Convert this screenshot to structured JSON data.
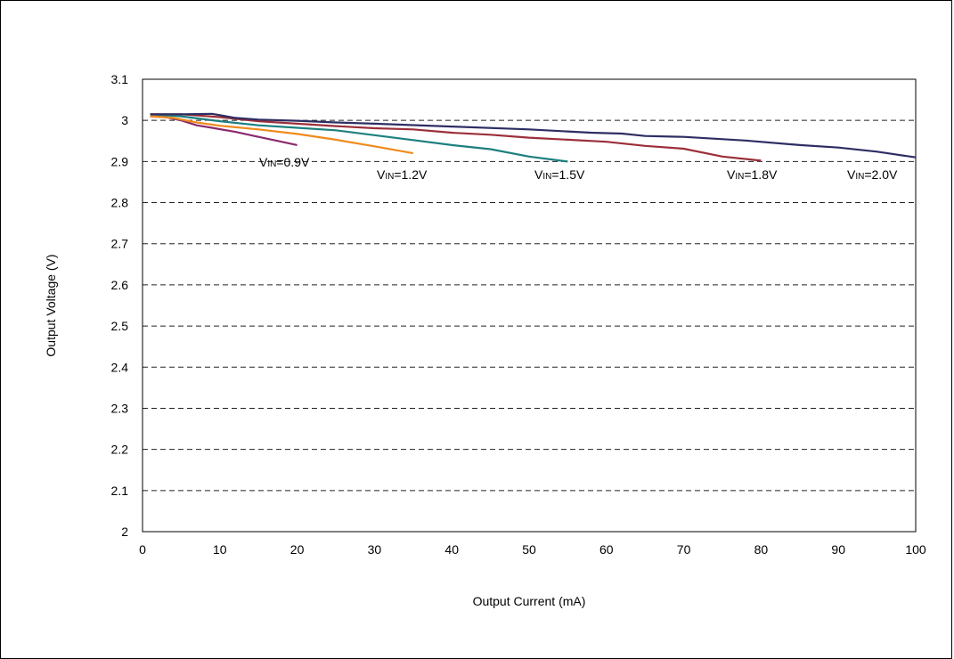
{
  "chart_data": {
    "type": "line",
    "title": "",
    "xlabel": "Output Current (mA)",
    "ylabel": "Output Voltage (V)",
    "xlim": [
      0,
      100
    ],
    "ylim": [
      2,
      3.1
    ],
    "x_ticks": [
      "0",
      "10",
      "20",
      "30",
      "40",
      "50",
      "60",
      "70",
      "80",
      "90",
      "100"
    ],
    "y_ticks": [
      "2",
      "2.1",
      "2.2",
      "2.3",
      "2.4",
      "2.5",
      "2.6",
      "2.7",
      "2.8",
      "2.9",
      "3",
      "3.1"
    ],
    "grid": "horizontal dashed",
    "series": [
      {
        "name_parts": [
          "V",
          "IN",
          "=0.9V"
        ],
        "color": "#8b2a6e",
        "x": [
          1,
          3,
          5,
          7,
          9,
          12,
          15,
          18,
          20
        ],
        "y": [
          3.01,
          3.008,
          3.0,
          2.988,
          2.982,
          2.972,
          2.96,
          2.948,
          2.94
        ]
      },
      {
        "name_parts": [
          "V",
          "IN",
          "=1.2V"
        ],
        "color": "#f08a1c",
        "x": [
          1,
          4,
          7,
          10,
          15,
          20,
          25,
          30,
          35
        ],
        "y": [
          3.01,
          3.006,
          2.995,
          2.987,
          2.978,
          2.967,
          2.953,
          2.937,
          2.92
        ]
      },
      {
        "name_parts": [
          "V",
          "IN",
          "=1.5V"
        ],
        "color": "#1d7f7f",
        "x": [
          1,
          5,
          10,
          15,
          20,
          25,
          30,
          35,
          40,
          45,
          50,
          55
        ],
        "y": [
          3.015,
          3.01,
          2.998,
          2.988,
          2.982,
          2.976,
          2.964,
          2.952,
          2.94,
          2.93,
          2.912,
          2.9
        ]
      },
      {
        "name_parts": [
          "V",
          "IN",
          "=1.8V"
        ],
        "color": "#9b2f3a",
        "x": [
          1,
          5,
          10,
          15,
          20,
          25,
          30,
          35,
          40,
          45,
          50,
          55,
          60,
          65,
          70,
          75,
          80
        ],
        "y": [
          3.015,
          3.015,
          3.008,
          2.998,
          2.992,
          2.986,
          2.981,
          2.978,
          2.97,
          2.965,
          2.958,
          2.953,
          2.948,
          2.938,
          2.931,
          2.912,
          2.902
        ]
      },
      {
        "name_parts": [
          "V",
          "IN",
          "=2.0V"
        ],
        "color": "#2d2e63",
        "x": [
          1,
          5,
          9,
          12,
          15,
          20,
          25,
          30,
          40,
          50,
          58,
          62,
          65,
          70,
          78,
          85,
          90,
          95,
          100
        ],
        "y": [
          3.015,
          3.015,
          3.016,
          3.006,
          3.002,
          2.999,
          2.995,
          2.992,
          2.985,
          2.978,
          2.97,
          2.968,
          2.962,
          2.96,
          2.951,
          2.94,
          2.934,
          2.924,
          2.91
        ]
      }
    ]
  }
}
